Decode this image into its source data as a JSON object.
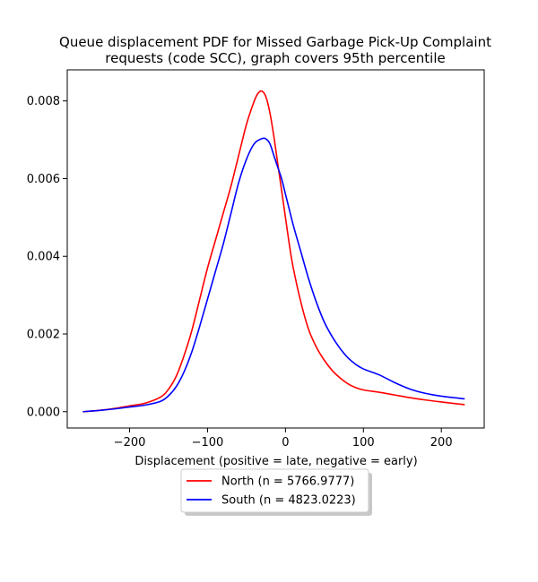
{
  "chart_data": {
    "type": "line",
    "title": [
      "Queue displacement PDF for Missed Garbage Pick-Up Complaint",
      "requests (code SCC), graph covers 95th percentile"
    ],
    "xlabel": "Displacement (positive = late, negative = early)",
    "ylabel": "",
    "xlim": [
      -280,
      255
    ],
    "ylim": [
      -0.00042,
      0.0088
    ],
    "xticks": [
      -200,
      -100,
      0,
      100,
      200
    ],
    "xtick_labels": [
      "−200",
      "−100",
      "0",
      "100",
      "200"
    ],
    "yticks": [
      0.0,
      0.002,
      0.004,
      0.006,
      0.008
    ],
    "ytick_labels": [
      "0.000",
      "0.002",
      "0.004",
      "0.006",
      "0.008"
    ],
    "grid": false,
    "legend": "below",
    "series": [
      {
        "name": "North (n = 5766.9777)",
        "color": "#ff0000",
        "x": [
          -260,
          -240,
          -220,
          -200,
          -180,
          -160,
          -150,
          -140,
          -130,
          -120,
          -110,
          -100,
          -90,
          -80,
          -70,
          -60,
          -50,
          -40,
          -35,
          -30,
          -25,
          -20,
          -15,
          -10,
          -5,
          0,
          5,
          10,
          20,
          30,
          40,
          50,
          60,
          70,
          80,
          90,
          100,
          120,
          140,
          160,
          180,
          200,
          230
        ],
        "y": [
          0.0,
          3e-05,
          8e-05,
          0.00015,
          0.00022,
          0.00038,
          0.00058,
          0.00092,
          0.00145,
          0.0021,
          0.0029,
          0.0037,
          0.0044,
          0.0051,
          0.0058,
          0.0066,
          0.0074,
          0.008,
          0.0082,
          0.00825,
          0.0081,
          0.0077,
          0.0071,
          0.0064,
          0.0057,
          0.005,
          0.0043,
          0.0037,
          0.0028,
          0.0021,
          0.00165,
          0.00132,
          0.00106,
          0.00087,
          0.00072,
          0.00062,
          0.00056,
          0.0005,
          0.00043,
          0.00036,
          0.0003,
          0.00025,
          0.00018
        ]
      },
      {
        "name": "South (n = 4823.0223)",
        "color": "#0000ff",
        "x": [
          -260,
          -240,
          -220,
          -200,
          -180,
          -160,
          -150,
          -140,
          -130,
          -120,
          -110,
          -100,
          -90,
          -80,
          -70,
          -60,
          -50,
          -40,
          -30,
          -25,
          -20,
          -15,
          -10,
          -5,
          0,
          5,
          10,
          20,
          30,
          40,
          50,
          60,
          70,
          80,
          90,
          100,
          120,
          140,
          160,
          180,
          200,
          230
        ],
        "y": [
          0.0,
          3e-05,
          7e-05,
          0.00012,
          0.00017,
          0.00027,
          0.00041,
          0.00065,
          0.00103,
          0.00155,
          0.0022,
          0.0029,
          0.0036,
          0.0043,
          0.0051,
          0.0059,
          0.0065,
          0.0069,
          0.00703,
          0.00702,
          0.0069,
          0.0066,
          0.0063,
          0.006,
          0.0056,
          0.0052,
          0.0048,
          0.0041,
          0.0034,
          0.0028,
          0.0023,
          0.00193,
          0.00163,
          0.00139,
          0.00122,
          0.0011,
          0.00095,
          0.00075,
          0.00058,
          0.00047,
          0.0004,
          0.00033
        ]
      }
    ]
  }
}
